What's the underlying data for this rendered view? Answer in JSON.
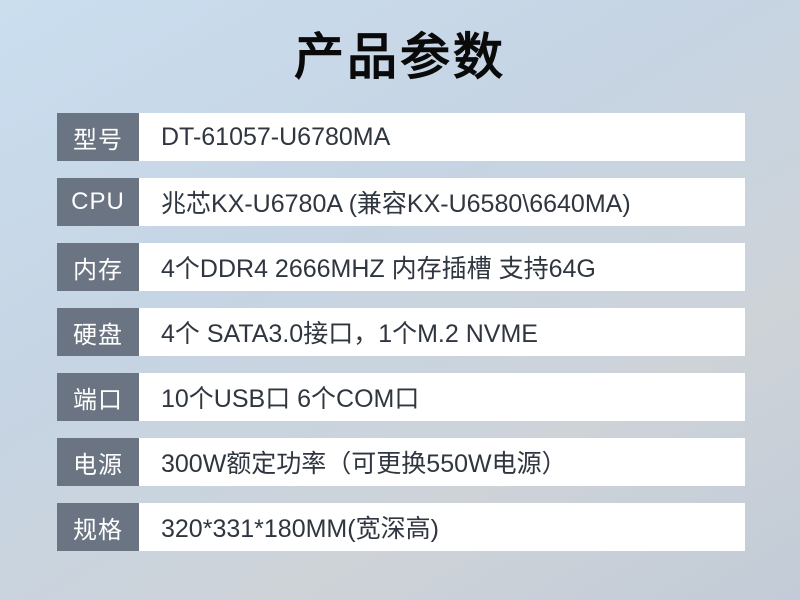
{
  "title": "产品参数",
  "colors": {
    "background_top": "#cadeef",
    "background_bottom": "#c2cbd7",
    "label_background": "#6b7482",
    "label_text": "#ffffff",
    "value_text": "#2f363f",
    "row_background": "#ffffff",
    "title_text": "#0a0a0a"
  },
  "specs": [
    {
      "label": "型号",
      "value": "DT-61057-U6780MA"
    },
    {
      "label": "CPU",
      "value": "兆芯KX-U6780A (兼容KX-U6580\\6640MA)"
    },
    {
      "label": "内存",
      "value": "4个DDR4 2666MHZ 内存插槽 支持64G"
    },
    {
      "label": "硬盘",
      "value": "4个 SATA3.0接口，1个M.2 NVME"
    },
    {
      "label": "端口",
      "value": "10个USB口 6个COM口"
    },
    {
      "label": "电源",
      "value": "300W额定功率（可更换550W电源）"
    },
    {
      "label": "规格",
      "value": "320*331*180MM(宽深高)"
    }
  ]
}
